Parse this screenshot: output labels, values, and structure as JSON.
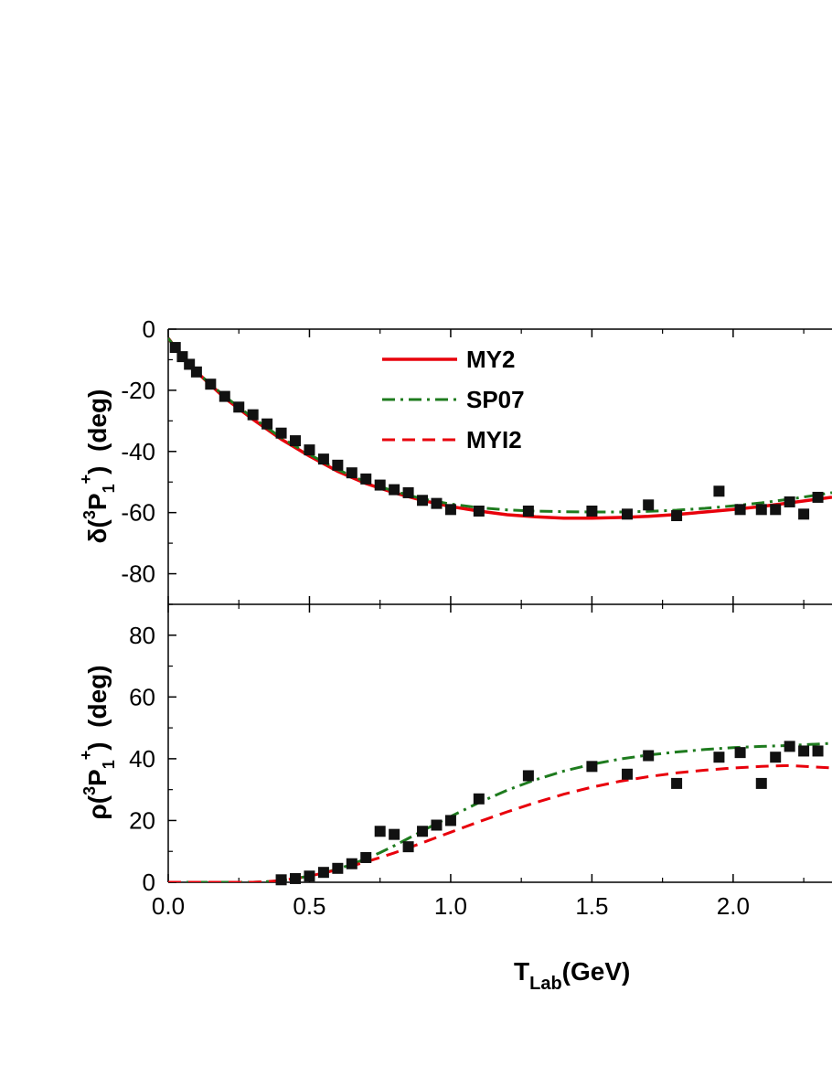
{
  "chart_data": [
    {
      "panel": "top",
      "type": "line",
      "ylabel": {
        "main": "δ(",
        "sup": "3",
        "letter": "P",
        "sub": "1",
        "sup2": "+",
        "close": ")",
        "unit": "  (deg)"
      },
      "xlim": [
        0.0,
        2.35
      ],
      "ylim": [
        -90,
        0
      ],
      "yticks": [
        0,
        -20,
        -40,
        -60,
        -80
      ],
      "ytick_labels": [
        "0",
        "-20",
        "-40",
        "-60",
        "-80"
      ],
      "legend": {
        "placement": "top-center",
        "entries": [
          {
            "label": "MY2",
            "color": "#e8000b",
            "style": "solid"
          },
          {
            "label": "SP07",
            "color": "#1e7b1e",
            "style": "dash-dot"
          },
          {
            "label": "MYI2",
            "color": "#e8000b",
            "style": "dashed"
          }
        ]
      },
      "series": [
        {
          "name": "MY2",
          "style": "solid",
          "color": "#e8000b",
          "x": [
            0,
            0.05,
            0.1,
            0.2,
            0.3,
            0.4,
            0.5,
            0.6,
            0.7,
            0.8,
            0.9,
            1.0,
            1.1,
            1.2,
            1.3,
            1.4,
            1.5,
            1.6,
            1.7,
            1.8,
            1.9,
            2.0,
            2.1,
            2.2,
            2.35
          ],
          "y": [
            -3,
            -9,
            -14,
            -22.5,
            -29.5,
            -36,
            -41.5,
            -46.5,
            -50.5,
            -53.5,
            -56,
            -58,
            -59.5,
            -60.7,
            -61.4,
            -61.8,
            -61.8,
            -61.6,
            -61.2,
            -60.6,
            -59.8,
            -59,
            -58,
            -56.8,
            -55
          ]
        },
        {
          "name": "SP07",
          "style": "dash-dot",
          "color": "#1e7b1e",
          "x": [
            0,
            0.05,
            0.1,
            0.2,
            0.3,
            0.4,
            0.5,
            0.6,
            0.7,
            0.8,
            0.9,
            1.0,
            1.1,
            1.2,
            1.3,
            1.4,
            1.5,
            1.6,
            1.7,
            1.8,
            1.9,
            2.0,
            2.1,
            2.2,
            2.35
          ],
          "y": [
            -3,
            -9,
            -14,
            -22,
            -29,
            -35.5,
            -41,
            -46,
            -50,
            -53,
            -55.5,
            -57.2,
            -58.4,
            -59.1,
            -59.5,
            -59.7,
            -59.8,
            -59.8,
            -59.6,
            -59.2,
            -58.6,
            -57.8,
            -56.8,
            -55.6,
            -53.5
          ]
        },
        {
          "name": "data",
          "style": "markers",
          "color": "#000000",
          "x": [
            0.025,
            0.05,
            0.075,
            0.1,
            0.15,
            0.2,
            0.25,
            0.3,
            0.35,
            0.4,
            0.45,
            0.5,
            0.55,
            0.6,
            0.65,
            0.7,
            0.75,
            0.8,
            0.85,
            0.9,
            0.95,
            1.0,
            1.1,
            1.275,
            1.5,
            1.625,
            1.7,
            1.8,
            1.95,
            2.025,
            2.1,
            2.15,
            2.2,
            2.25,
            2.3
          ],
          "y": [
            -6,
            -9,
            -11.5,
            -14,
            -18,
            -22,
            -25.5,
            -28,
            -31,
            -34,
            -36.5,
            -39.5,
            -42.5,
            -44.5,
            -47,
            -49,
            -51,
            -52.5,
            -53.5,
            -56,
            -57,
            -59,
            -59.5,
            -59.5,
            -59.5,
            -60.5,
            -57.5,
            -61,
            -53,
            -59,
            -59,
            -59,
            -56.5,
            -60.5,
            -55
          ]
        }
      ]
    },
    {
      "panel": "bottom",
      "type": "line",
      "xlabel": {
        "main": "T",
        "sub": "Lab",
        "rest": "(GeV)"
      },
      "ylabel": {
        "main": "ρ(",
        "sup": "3",
        "letter": "P",
        "sub": "1",
        "sup2": "+",
        "close": ")",
        "unit": "  (deg)"
      },
      "xlim": [
        0.0,
        2.35
      ],
      "ylim": [
        0,
        90
      ],
      "xticks": [
        0.0,
        0.5,
        1.0,
        1.5,
        2.0
      ],
      "xtick_labels": [
        "0.0",
        "0.5",
        "1.0",
        "1.5",
        "2.0"
      ],
      "yticks": [
        0,
        20,
        40,
        60,
        80
      ],
      "ytick_labels": [
        "0",
        "20",
        "40",
        "60",
        "80"
      ],
      "series": [
        {
          "name": "SP07",
          "style": "dash-dot",
          "color": "#1e7b1e",
          "x": [
            0,
            0.1,
            0.2,
            0.3,
            0.35,
            0.4,
            0.45,
            0.5,
            0.55,
            0.6,
            0.65,
            0.7,
            0.75,
            0.8,
            0.85,
            0.9,
            0.95,
            1.0,
            1.1,
            1.2,
            1.3,
            1.4,
            1.5,
            1.6,
            1.7,
            1.8,
            1.9,
            2.0,
            2.1,
            2.2,
            2.35
          ],
          "y": [
            0,
            0,
            0,
            0,
            0.2,
            0.6,
            1.2,
            2,
            3,
            4.3,
            5.8,
            7.6,
            9.6,
            11.8,
            14.2,
            16.6,
            19,
            21.3,
            25.8,
            29.8,
            33.2,
            36,
            38.2,
            39.9,
            41.2,
            42.2,
            43,
            43.6,
            44,
            44.3,
            45
          ]
        },
        {
          "name": "MYI2",
          "style": "dashed",
          "color": "#e8000b",
          "x": [
            0,
            0.1,
            0.2,
            0.3,
            0.35,
            0.4,
            0.45,
            0.5,
            0.55,
            0.6,
            0.65,
            0.7,
            0.75,
            0.8,
            0.85,
            0.9,
            0.95,
            1.0,
            1.1,
            1.2,
            1.3,
            1.4,
            1.5,
            1.6,
            1.7,
            1.8,
            1.9,
            2.0,
            2.1,
            2.2,
            2.35
          ],
          "y": [
            0,
            0,
            0,
            0,
            0.2,
            0.6,
            1.2,
            2,
            3,
            4.1,
            5.3,
            6.6,
            8,
            9.5,
            11.1,
            12.8,
            14.5,
            16.2,
            19.6,
            22.8,
            25.8,
            28.5,
            30.8,
            32.7,
            34.2,
            35.4,
            36.3,
            37,
            37.5,
            37.8,
            37
          ]
        },
        {
          "name": "data",
          "style": "markers",
          "color": "#000000",
          "x": [
            0.4,
            0.45,
            0.5,
            0.55,
            0.6,
            0.65,
            0.7,
            0.75,
            0.8,
            0.85,
            0.9,
            0.95,
            1.0,
            1.1,
            1.275,
            1.5,
            1.625,
            1.7,
            1.8,
            1.95,
            2.025,
            2.1,
            2.15,
            2.2,
            2.25,
            2.3
          ],
          "y": [
            0.8,
            1.2,
            2,
            3.2,
            4.5,
            6,
            8,
            16.5,
            15.5,
            11.5,
            16.5,
            18.5,
            20,
            27,
            34.5,
            37.5,
            35,
            41,
            32,
            40.5,
            42,
            32,
            40.5,
            44,
            42.5,
            42.5
          ]
        }
      ]
    }
  ]
}
